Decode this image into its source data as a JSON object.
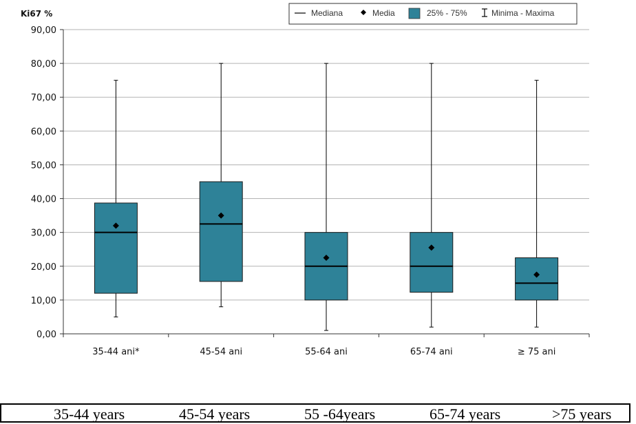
{
  "chart_data": {
    "type": "box",
    "ylabel": "Ki67 %",
    "ylim": [
      0,
      90
    ],
    "yticks": [
      "0,00",
      "10,00",
      "20,00",
      "30,00",
      "40,00",
      "50,00",
      "60,00",
      "70,00",
      "80,00",
      "90,00"
    ],
    "categories": [
      "35-44 ani*",
      "45-54 ani",
      "55-64 ani",
      "65-74 ani",
      "≥ 75 ani"
    ],
    "boxes": [
      {
        "min": 5,
        "q1": 12,
        "median": 30,
        "q3": 38.7,
        "max": 75,
        "mean": 32
      },
      {
        "min": 8,
        "q1": 15.5,
        "median": 32.5,
        "q3": 45,
        "max": 80,
        "mean": 35
      },
      {
        "min": 1,
        "q1": 10,
        "median": 20,
        "q3": 30,
        "max": 80,
        "mean": 22.5
      },
      {
        "min": 2,
        "q1": 12.3,
        "median": 20,
        "q3": 30,
        "max": 80,
        "mean": 25.5
      },
      {
        "min": 2,
        "q1": 10,
        "median": 15,
        "q3": 22.5,
        "max": 75,
        "mean": 17.5
      }
    ],
    "legend": {
      "median": "Mediana",
      "mean": "Media",
      "box": "25% - 75%",
      "range": "Minima - Maxima"
    },
    "grid": true,
    "legend_position": "top-right",
    "colors": {
      "box": "#2e8298",
      "grid": "#b3b3b3",
      "line": "#000000"
    }
  },
  "translation": [
    "35-44 years",
    "45-54 years",
    "55 -64years",
    "65-74 years",
    ">75 years"
  ]
}
